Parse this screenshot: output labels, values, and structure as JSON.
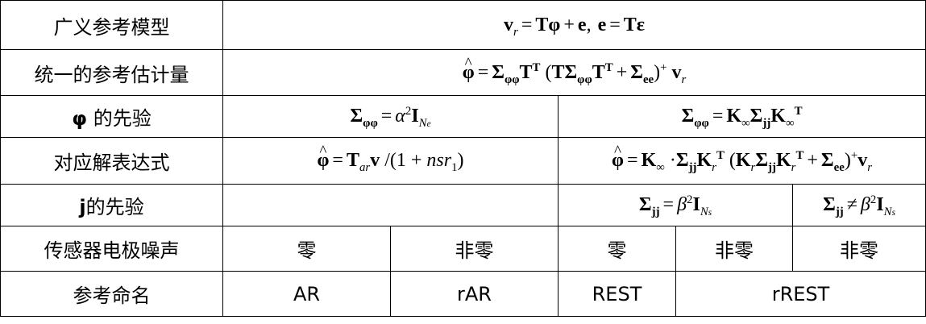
{
  "rows": {
    "general_model": {
      "label": "广义参考模型",
      "formula": "v_r = Tφ + e, e = Tε"
    },
    "unified_estimator": {
      "label": "统一的参考估计量",
      "formula": "φ̂ = Σ_φφ T^T (T Σ_φφ T^T + Σ_ee)^+ v_r"
    },
    "phi_prior": {
      "label_symbol": "φ",
      "label_text": " 的先验",
      "formula_left": "Σ_φφ = α² I_Ne",
      "formula_right": "Σ_φφ = K_∞ Σ_jj K_∞^T"
    },
    "expression": {
      "label": "对应解表达式",
      "formula_left": "φ̂ = T_ar v /(1 + nsr_1)",
      "formula_right": "φ̂ = K_∞ · Σ_jj K_r^T (K_r Σ_jj K_r^T + Σ_ee)^+ v_r"
    },
    "j_prior": {
      "label_symbol": "j",
      "label_text": "的先验",
      "formula_left": "",
      "formula_mid": "Σ_jj = β² I_Ns",
      "formula_right": "Σ_jj ≠ β² I_Ns"
    },
    "sensor_noise": {
      "label": "传感器电极噪声",
      "cells": [
        "零",
        "非零",
        "零",
        "非零",
        "非零"
      ]
    },
    "naming": {
      "label": "参考命名",
      "cells": [
        "AR",
        "rAR",
        "REST",
        "rREST"
      ]
    }
  }
}
